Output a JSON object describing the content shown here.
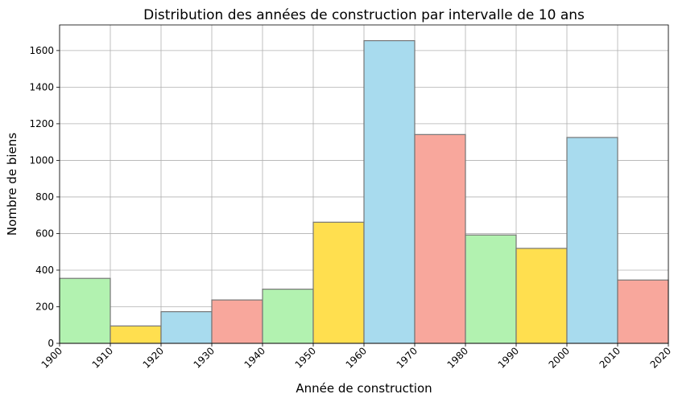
{
  "chart_data": {
    "type": "bar",
    "title": "Distribution des années de construction par intervalle de 10 ans",
    "xlabel": "Année de construction",
    "ylabel": "Nombre de biens",
    "bin_edges": [
      1900,
      1910,
      1920,
      1930,
      1940,
      1950,
      1960,
      1970,
      1980,
      1990,
      2000,
      2010,
      2020
    ],
    "values": [
      355,
      95,
      173,
      237,
      296,
      662,
      1654,
      1141,
      592,
      519,
      1125,
      346
    ],
    "xlim": [
      1900,
      2020
    ],
    "ylim": [
      0,
      1740
    ],
    "x_ticks": [
      "1900",
      "1910",
      "1920",
      "1930",
      "1940",
      "1950",
      "1960",
      "1970",
      "1980",
      "1990",
      "2000",
      "2010",
      "2020"
    ],
    "y_ticks": [
      "0",
      "200",
      "400",
      "600",
      "800",
      "1000",
      "1200",
      "1400",
      "1600"
    ],
    "grid": true,
    "colors": [
      "#b2f2b0",
      "#ffdf4f",
      "#a8dbee",
      "#f8a79c"
    ],
    "edge_color": "#757575"
  }
}
